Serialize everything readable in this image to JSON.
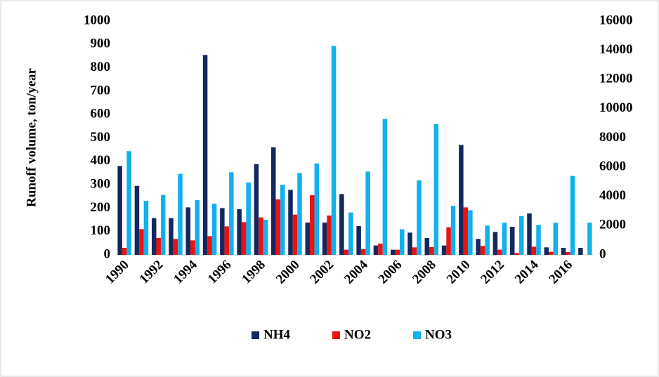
{
  "chart_data": {
    "type": "bar",
    "y_label": "Runoff volume, ton/year",
    "categories": [
      "1990",
      null,
      "1992",
      null,
      "1994",
      null,
      "1996",
      null,
      "1998",
      null,
      "2000",
      null,
      "2002",
      null,
      "2004",
      null,
      "2006",
      null,
      "2008",
      null,
      "2010",
      null,
      "2012",
      null,
      "2014",
      null,
      "2016",
      null
    ],
    "series": [
      {
        "name": "NH4",
        "color": "#14285f",
        "values": [
          380,
          295,
          157,
          157,
          203,
          855,
          200,
          195,
          388,
          460,
          278,
          138,
          138,
          260,
          123,
          40,
          22,
          95,
          72,
          40,
          470,
          68,
          98,
          120,
          177,
          32,
          30,
          30
        ]
      },
      {
        "name": "NO2",
        "color": "#ee1111",
        "values": [
          30,
          110,
          72,
          68,
          62,
          80,
          122,
          140,
          160,
          237,
          172,
          255,
          168,
          22,
          25,
          48,
          22,
          32,
          33,
          118,
          203,
          38,
          22,
          8,
          35,
          13,
          12,
          0
        ]
      },
      {
        "name": "NO3",
        "color": "#11b0ee",
        "axis": "y2",
        "values": [
          7100,
          3700,
          4100,
          5550,
          3750,
          3500,
          5650,
          4950,
          2400,
          4800,
          5600,
          6250,
          14300,
          2900,
          5700,
          9300,
          1750,
          5100,
          8950,
          3350,
          3050,
          2000,
          2200,
          2650,
          2050,
          2200,
          5400,
          2200
        ]
      }
    ],
    "ylim": [
      0,
      1000
    ],
    "yticks": [
      0,
      100,
      200,
      300,
      400,
      500,
      600,
      700,
      800,
      900,
      1000
    ],
    "y2lim": [
      0,
      16000
    ],
    "y2ticks": [
      0,
      2000,
      4000,
      6000,
      8000,
      10000,
      12000,
      14000,
      16000
    ],
    "grid": false,
    "legend": "bottom"
  }
}
